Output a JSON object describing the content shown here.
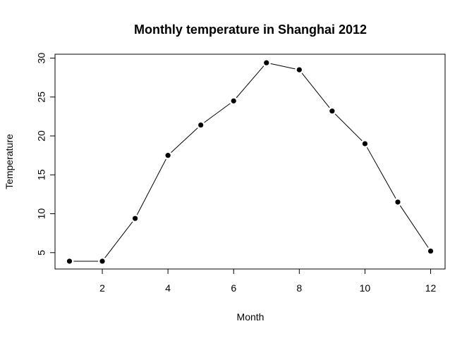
{
  "chart_data": {
    "type": "line",
    "title": "Monthly temperature in Shanghai 2012",
    "xlabel": "Month",
    "ylabel": "Temperature",
    "x": [
      1,
      2,
      3,
      4,
      5,
      6,
      7,
      8,
      9,
      10,
      11,
      12
    ],
    "series": [
      {
        "values": [
          3.9,
          3.9,
          9.4,
          17.5,
          21.4,
          24.5,
          29.4,
          28.5,
          23.2,
          19.0,
          11.5,
          5.2
        ]
      }
    ],
    "xlim": [
      0.56,
      12.44
    ],
    "ylim": [
      2.9,
      30.5
    ],
    "xticks": [
      2,
      4,
      6,
      8,
      10,
      12
    ],
    "yticks": [
      5,
      10,
      15,
      20,
      25,
      30
    ],
    "grid": false,
    "legend": "none",
    "line_color": "#000000",
    "marker_color": "#000000"
  }
}
